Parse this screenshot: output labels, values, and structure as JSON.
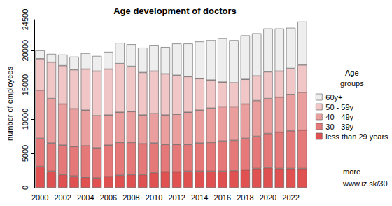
{
  "chart_data": {
    "type": "bar",
    "title": "Age development of doctors",
    "y_label": "number of employees",
    "legend_title": "Age groups",
    "annotations": [
      "more",
      "www.iz.sk/30"
    ],
    "stacked": true,
    "grid": false,
    "legend": "right",
    "categories": [
      "2000",
      null,
      "2002",
      null,
      "2004",
      null,
      "2006",
      null,
      "2008",
      null,
      "2010",
      null,
      "2012",
      null,
      "2014",
      null,
      "2016",
      null,
      "2018",
      null,
      "2020",
      null,
      "2022",
      null
    ],
    "series": [
      {
        "name": "less than 29 years",
        "color": "#e05252",
        "values": [
          3100,
          2400,
          1900,
          1700,
          1500,
          1400,
          1600,
          1800,
          1900,
          1900,
          2200,
          2300,
          2300,
          2400,
          2400,
          2400,
          2400,
          2500,
          2600,
          2800,
          2900,
          2800,
          2800,
          2800
        ]
      },
      {
        "name": "30 - 39y",
        "color": "#e57878",
        "values": [
          4100,
          4100,
          4300,
          4300,
          4600,
          4400,
          4600,
          4800,
          4700,
          4500,
          4300,
          4000,
          4000,
          3900,
          4100,
          4200,
          4400,
          4400,
          4600,
          4700,
          5000,
          5300,
          5500,
          5600
        ]
      },
      {
        "name": "40 - 49y",
        "color": "#eb9e9e",
        "values": [
          7000,
          6500,
          6000,
          5500,
          5200,
          4700,
          4400,
          4400,
          4500,
          4200,
          4300,
          4300,
          4400,
          4700,
          4800,
          5000,
          5000,
          4900,
          5000,
          5200,
          5100,
          5100,
          5300,
          5500
        ]
      },
      {
        "name": "50 - 59y",
        "color": "#f0c6c6",
        "values": [
          4600,
          5300,
          5600,
          5700,
          6000,
          6500,
          6700,
          7100,
          6600,
          6200,
          6200,
          6000,
          5700,
          5200,
          4600,
          4100,
          3600,
          3500,
          3600,
          3600,
          3900,
          3800,
          3800,
          4000
        ]
      },
      {
        "name": "60y+",
        "color": "#eeeeee",
        "values": [
          1200,
          1200,
          1600,
          1900,
          2300,
          2200,
          2500,
          3000,
          3200,
          3600,
          3800,
          3900,
          4600,
          4800,
          5400,
          5800,
          6400,
          6200,
          6400,
          6200,
          6300,
          6200,
          5900,
          6300
        ]
      }
    ],
    "ylim": [
      0,
      24500
    ],
    "yticks": [
      0,
      5000,
      10000,
      15000,
      20000
    ]
  }
}
